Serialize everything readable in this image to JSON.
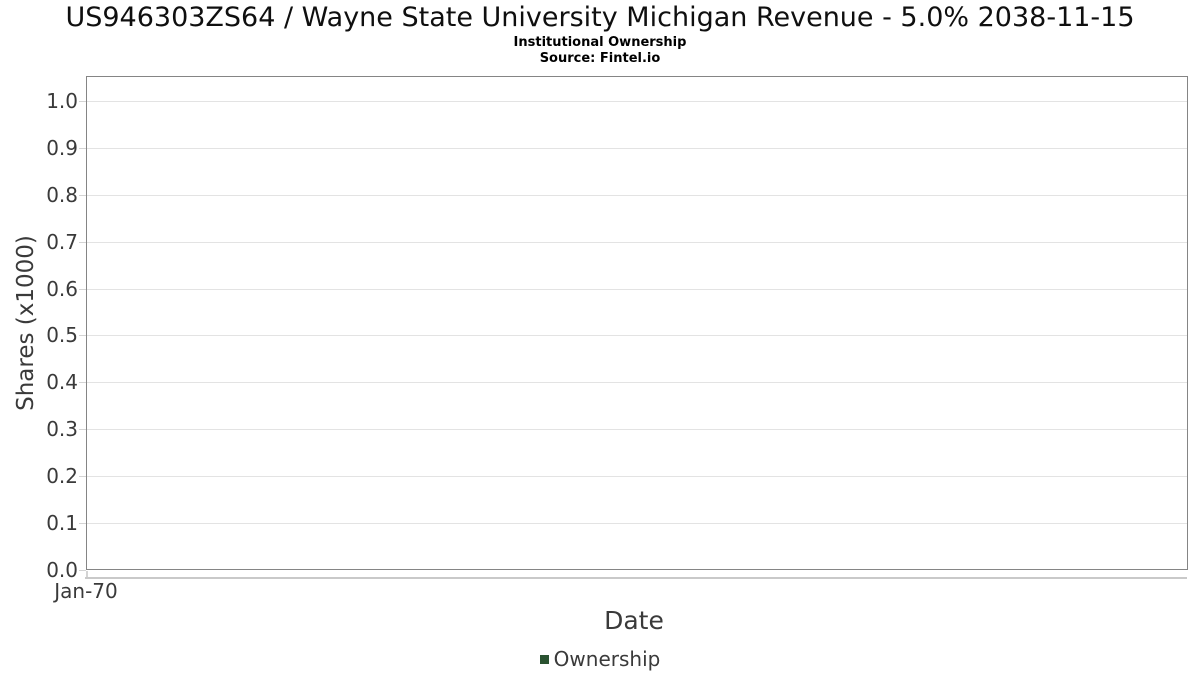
{
  "page": {
    "title": "US946303ZS64 / Wayne State University Michigan Revenue - 5.0% 2038-11-15",
    "subtitle": "Institutional Ownership",
    "source": "Source: Fintel.io"
  },
  "chart_data": {
    "type": "line",
    "title": "US946303ZS64 / Wayne State University Michigan Revenue - 5.0% 2038-11-15",
    "subtitle": "Institutional Ownership",
    "source": "Source: Fintel.io",
    "xlabel": "Date",
    "ylabel": "Shares (x1000)",
    "x_ticks": [
      {
        "label": "Jan-70",
        "pos": 0
      }
    ],
    "y_ticks": [
      {
        "label": "0.0",
        "value": 0.0
      },
      {
        "label": "0.1",
        "value": 0.1
      },
      {
        "label": "0.2",
        "value": 0.2
      },
      {
        "label": "0.3",
        "value": 0.3
      },
      {
        "label": "0.4",
        "value": 0.4
      },
      {
        "label": "0.5",
        "value": 0.5
      },
      {
        "label": "0.6",
        "value": 0.6
      },
      {
        "label": "0.7",
        "value": 0.7
      },
      {
        "label": "0.8",
        "value": 0.8
      },
      {
        "label": "0.9",
        "value": 0.9
      },
      {
        "label": "1.0",
        "value": 1.0
      }
    ],
    "ylim": [
      0,
      1.053
    ],
    "grid": true,
    "legend_position": "bottom",
    "series": [
      {
        "name": "Ownership",
        "color": "#2a5231",
        "points": []
      }
    ],
    "colors": {
      "plot_border": "#858585",
      "gridline": "#e3e3e3",
      "tick_mark": "#d4d4d4",
      "x_axis_line": "#c9c9c9",
      "tick_text": "#3a3a3a",
      "title_text": "#0f0f0f",
      "legend_marker": "#2a5231"
    }
  }
}
